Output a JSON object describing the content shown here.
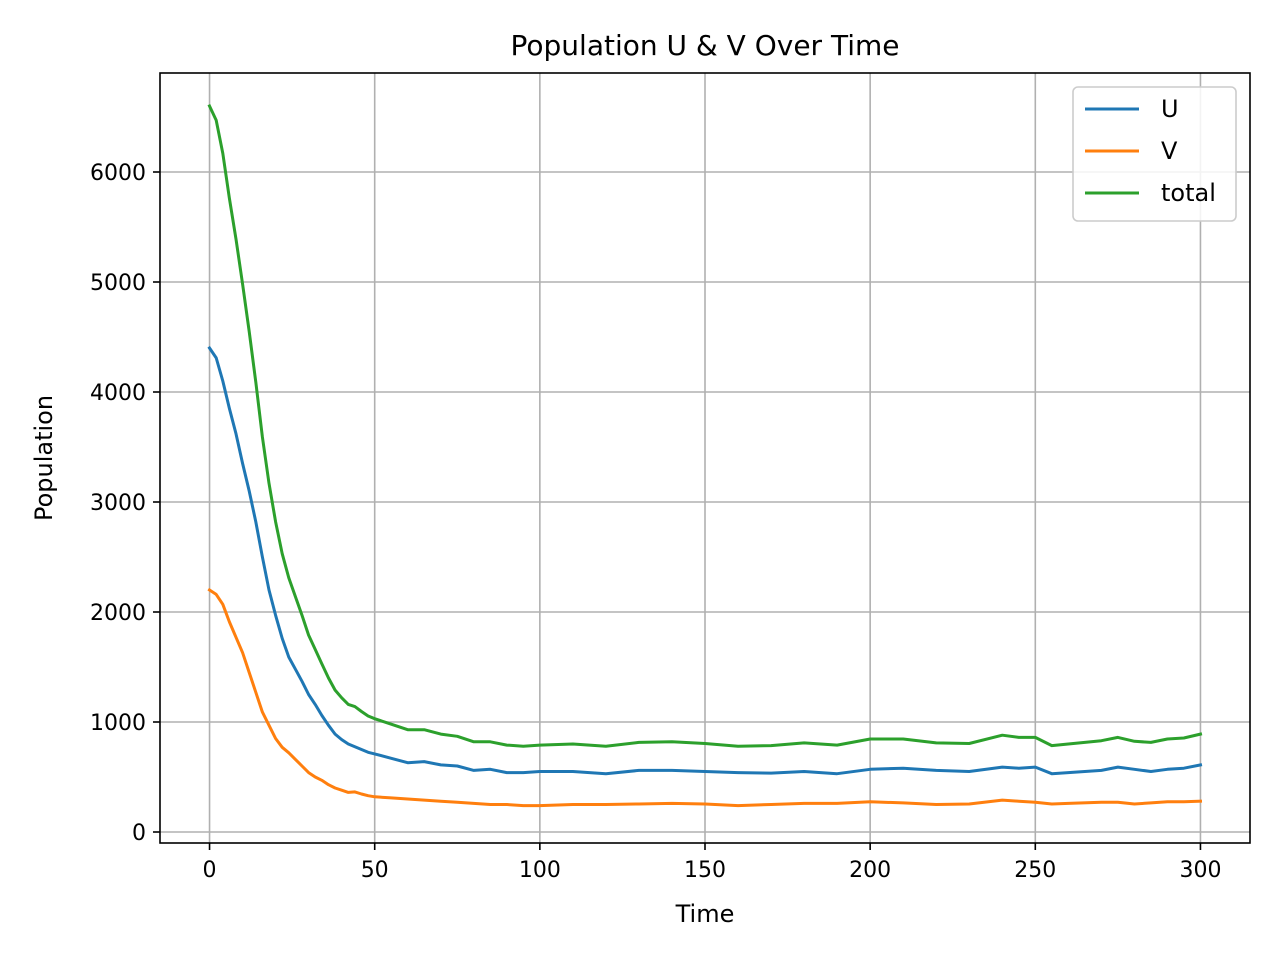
{
  "chart_data": {
    "type": "line",
    "title": "Population U & V Over Time",
    "xlabel": "Time",
    "ylabel": "Population",
    "xlim": [
      -15,
      315
    ],
    "ylim": [
      -100,
      6900
    ],
    "xticks": [
      0,
      50,
      100,
      150,
      200,
      250,
      300
    ],
    "yticks": [
      0,
      1000,
      2000,
      3000,
      4000,
      5000,
      6000
    ],
    "grid": true,
    "legend": "top-right",
    "x": [
      0,
      2,
      4,
      6,
      8,
      10,
      12,
      14,
      16,
      18,
      20,
      22,
      24,
      26,
      28,
      30,
      32,
      34,
      36,
      38,
      40,
      42,
      44,
      46,
      48,
      50,
      55,
      60,
      65,
      70,
      75,
      80,
      85,
      90,
      95,
      100,
      110,
      120,
      130,
      140,
      150,
      160,
      170,
      180,
      190,
      200,
      210,
      220,
      230,
      240,
      245,
      250,
      255,
      260,
      270,
      275,
      280,
      285,
      290,
      295,
      300
    ],
    "series": [
      {
        "name": "U",
        "color": "#1f77b4",
        "values": [
          4400,
          4310,
          4100,
          3850,
          3620,
          3350,
          3100,
          2820,
          2500,
          2200,
          1970,
          1760,
          1590,
          1480,
          1370,
          1250,
          1160,
          1060,
          970,
          890,
          840,
          800,
          775,
          750,
          725,
          710,
          670,
          630,
          640,
          610,
          600,
          560,
          570,
          540,
          540,
          550,
          550,
          530,
          560,
          560,
          550,
          540,
          535,
          550,
          530,
          570,
          580,
          560,
          550,
          590,
          580,
          590,
          530,
          540,
          560,
          590,
          570,
          550,
          570,
          580,
          610
        ]
      },
      {
        "name": "V",
        "color": "#ff7f0e",
        "values": [
          2200,
          2160,
          2070,
          1910,
          1770,
          1630,
          1450,
          1270,
          1090,
          970,
          850,
          770,
          720,
          660,
          600,
          540,
          500,
          470,
          430,
          400,
          380,
          360,
          365,
          345,
          330,
          320,
          310,
          300,
          290,
          280,
          270,
          260,
          250,
          250,
          240,
          240,
          250,
          250,
          255,
          260,
          255,
          240,
          250,
          260,
          260,
          275,
          265,
          250,
          255,
          290,
          280,
          270,
          255,
          260,
          270,
          270,
          255,
          265,
          275,
          275,
          280
        ]
      },
      {
        "name": "total",
        "color": "#2ca02c",
        "values": [
          6600,
          6470,
          6170,
          5760,
          5390,
          4980,
          4550,
          4090,
          3590,
          3170,
          2820,
          2530,
          2310,
          2140,
          1970,
          1790,
          1660,
          1530,
          1400,
          1290,
          1220,
          1160,
          1140,
          1095,
          1055,
          1030,
          980,
          930,
          930,
          890,
          870,
          820,
          820,
          790,
          780,
          790,
          800,
          780,
          815,
          820,
          805,
          780,
          785,
          810,
          790,
          845,
          845,
          810,
          805,
          880,
          860,
          860,
          785,
          800,
          830,
          860,
          825,
          815,
          845,
          855,
          890
        ]
      }
    ]
  }
}
